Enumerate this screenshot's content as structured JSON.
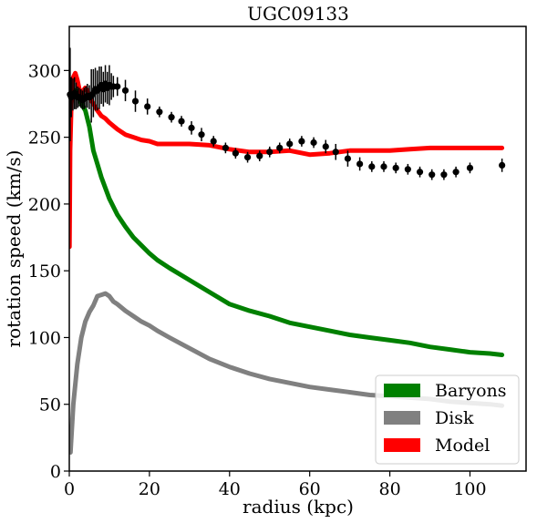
{
  "chart_data": {
    "type": "line",
    "title": "UGC09133",
    "xlabel": "radius (kpc)",
    "ylabel": "rotation speed (km/s)",
    "xlim": [
      0,
      114
    ],
    "ylim": [
      0,
      333
    ],
    "xticks": [
      0,
      20,
      40,
      60,
      80,
      100
    ],
    "yticks": [
      0,
      50,
      100,
      150,
      200,
      250,
      300
    ],
    "grid": false,
    "legend_position": "lower-right",
    "series": [
      {
        "name": "Baryons",
        "color": "#008000",
        "x": [
          0.1,
          0.5,
          1.0,
          1.5,
          2.0,
          2.5,
          3.0,
          4.0,
          5.0,
          6.0,
          7.0,
          8.0,
          10.0,
          12.0,
          14.0,
          16.0,
          18.0,
          20.0,
          22.0,
          25.0,
          30.0,
          35.0,
          40.0,
          45.0,
          50.0,
          55.0,
          60.0,
          65.0,
          70.0,
          75.0,
          80.0,
          85.0,
          90.0,
          95.0,
          100.0,
          105.0,
          108.0
        ],
        "values": [
          275,
          282,
          283,
          285,
          280,
          278,
          275,
          270,
          258,
          240,
          230,
          220,
          204,
          192,
          183,
          175,
          169,
          163,
          158,
          152,
          143,
          134,
          125,
          120,
          116,
          111,
          108,
          105,
          102,
          100,
          98,
          96,
          93,
          91,
          89,
          88,
          87
        ]
      },
      {
        "name": "Disk",
        "color": "#808080",
        "x": [
          0.3,
          1.0,
          2.0,
          3.0,
          4.0,
          5.0,
          6.0,
          7.0,
          8.0,
          9.0,
          10.0,
          11.0,
          12.0,
          14.0,
          16.0,
          18.0,
          20.0,
          22.0,
          25.0,
          30.0,
          35.0,
          40.0,
          45.0,
          50.0,
          55.0,
          60.0,
          65.0,
          70.0,
          75.0,
          80.0,
          85.0,
          90.0,
          95.0,
          100.0,
          105.0,
          108.0
        ],
        "values": [
          14,
          50,
          80,
          100,
          112,
          119,
          124,
          131,
          132,
          133,
          131,
          127,
          125,
          120,
          116,
          112,
          109,
          105,
          100,
          92,
          84,
          78,
          73,
          69,
          66,
          63,
          61,
          59,
          57,
          56,
          55,
          54,
          52,
          51,
          50,
          49
        ]
      },
      {
        "name": "Model",
        "color": "#ff0000",
        "x": [
          0.05,
          0.2,
          0.5,
          0.8,
          1.0,
          1.5,
          2.0,
          2.5,
          3.0,
          3.5,
          4.0,
          4.5,
          5.0,
          6.0,
          7.0,
          8.0,
          9.0,
          10.0,
          12.0,
          14.0,
          16.0,
          18.0,
          20.0,
          22.0,
          25.0,
          30.0,
          35.0,
          40.0,
          45.0,
          50.0,
          55.0,
          60.0,
          65.0,
          70.0,
          75.0,
          80.0,
          85.0,
          90.0,
          95.0,
          100.0,
          105.0,
          108.0
        ],
        "values": [
          168,
          240,
          275,
          285,
          295,
          298,
          293,
          286,
          282,
          285,
          287,
          285,
          280,
          275,
          270,
          266,
          264,
          261,
          256,
          252,
          250,
          248,
          247,
          245,
          245,
          245,
          244,
          241,
          239,
          239,
          240,
          237,
          238,
          240,
          240,
          240,
          241,
          242,
          242,
          242,
          242,
          242
        ]
      }
    ],
    "observations": {
      "name": "data",
      "color": "#000000",
      "points": [
        {
          "x": 0.2,
          "y": 282,
          "err": 35
        },
        {
          "x": 0.5,
          "y": 280,
          "err": 15
        },
        {
          "x": 0.9,
          "y": 282,
          "err": 12
        },
        {
          "x": 1.3,
          "y": 283,
          "err": 12
        },
        {
          "x": 1.7,
          "y": 281,
          "err": 10
        },
        {
          "x": 2.1,
          "y": 280,
          "err": 8
        },
        {
          "x": 2.5,
          "y": 280,
          "err": 7
        },
        {
          "x": 2.9,
          "y": 279,
          "err": 7
        },
        {
          "x": 3.3,
          "y": 278,
          "err": 7
        },
        {
          "x": 3.7,
          "y": 279,
          "err": 8
        },
        {
          "x": 4.1,
          "y": 280,
          "err": 8
        },
        {
          "x": 4.5,
          "y": 281,
          "err": 9
        },
        {
          "x": 5.0,
          "y": 280,
          "err": 9
        },
        {
          "x": 5.5,
          "y": 281,
          "err": 20
        },
        {
          "x": 6.0,
          "y": 283,
          "err": 18
        },
        {
          "x": 6.5,
          "y": 286,
          "err": 16
        },
        {
          "x": 7.0,
          "y": 285,
          "err": 15
        },
        {
          "x": 7.5,
          "y": 287,
          "err": 16
        },
        {
          "x": 8.0,
          "y": 289,
          "err": 14
        },
        {
          "x": 8.5,
          "y": 286,
          "err": 13
        },
        {
          "x": 9.0,
          "y": 290,
          "err": 14
        },
        {
          "x": 9.5,
          "y": 287,
          "err": 12
        },
        {
          "x": 10.0,
          "y": 289,
          "err": 15
        },
        {
          "x": 10.5,
          "y": 288,
          "err": 10
        },
        {
          "x": 11.0,
          "y": 288,
          "err": 8
        },
        {
          "x": 12.0,
          "y": 288,
          "err": 7
        },
        {
          "x": 14.0,
          "y": 285,
          "err": 8
        },
        {
          "x": 16.5,
          "y": 277,
          "err": 8
        },
        {
          "x": 19.5,
          "y": 273,
          "err": 6
        },
        {
          "x": 22.5,
          "y": 269,
          "err": 4
        },
        {
          "x": 25.5,
          "y": 265,
          "err": 4
        },
        {
          "x": 28.0,
          "y": 262,
          "err": 4
        },
        {
          "x": 30.5,
          "y": 257,
          "err": 5
        },
        {
          "x": 33.0,
          "y": 252,
          "err": 5
        },
        {
          "x": 36.0,
          "y": 247,
          "err": 4
        },
        {
          "x": 39.0,
          "y": 242,
          "err": 4
        },
        {
          "x": 41.5,
          "y": 238,
          "err": 4
        },
        {
          "x": 44.5,
          "y": 235,
          "err": 4
        },
        {
          "x": 47.5,
          "y": 236,
          "err": 4
        },
        {
          "x": 50.0,
          "y": 239,
          "err": 4
        },
        {
          "x": 52.5,
          "y": 242,
          "err": 4
        },
        {
          "x": 55.0,
          "y": 245,
          "err": 4
        },
        {
          "x": 58.0,
          "y": 247,
          "err": 4
        },
        {
          "x": 61.0,
          "y": 246,
          "err": 4
        },
        {
          "x": 64.0,
          "y": 243,
          "err": 5
        },
        {
          "x": 66.5,
          "y": 239,
          "err": 6
        },
        {
          "x": 69.5,
          "y": 234,
          "err": 6
        },
        {
          "x": 72.5,
          "y": 230,
          "err": 5
        },
        {
          "x": 75.5,
          "y": 228,
          "err": 4
        },
        {
          "x": 78.5,
          "y": 228,
          "err": 4
        },
        {
          "x": 81.5,
          "y": 227,
          "err": 4
        },
        {
          "x": 84.5,
          "y": 226,
          "err": 4
        },
        {
          "x": 87.5,
          "y": 224,
          "err": 4
        },
        {
          "x": 90.5,
          "y": 222,
          "err": 4
        },
        {
          "x": 93.5,
          "y": 222,
          "err": 4
        },
        {
          "x": 96.5,
          "y": 224,
          "err": 4
        },
        {
          "x": 100.0,
          "y": 227,
          "err": 4
        },
        {
          "x": 108.0,
          "y": 229,
          "err": 5
        }
      ]
    }
  }
}
